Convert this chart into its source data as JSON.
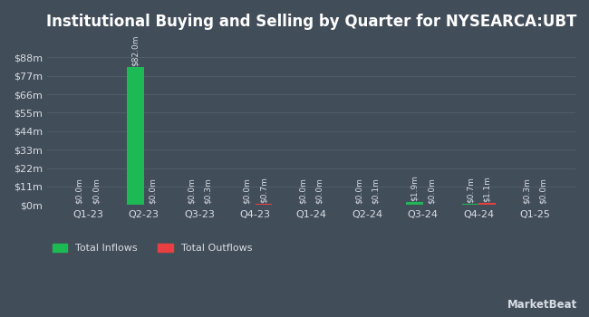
{
  "title": "Institutional Buying and Selling by Quarter for NYSEARCA:UBT",
  "quarters": [
    "Q1-23",
    "Q2-23",
    "Q3-23",
    "Q4-23",
    "Q1-24",
    "Q2-24",
    "Q3-24",
    "Q4-24",
    "Q1-25"
  ],
  "inflows": [
    0.0,
    82.0,
    0.0,
    0.0,
    0.0,
    0.0,
    1.9,
    0.7,
    0.3
  ],
  "outflows": [
    0.0,
    0.0,
    0.3,
    0.7,
    0.0,
    0.1,
    0.0,
    1.1,
    0.0
  ],
  "inflow_color": "#1db954",
  "outflow_color": "#e84040",
  "bg_color": "#424d5a",
  "grid_color": "#4e5c6a",
  "text_color": "#d8dde3",
  "title_color": "#ffffff",
  "title_fontsize": 12,
  "label_fontsize": 6.5,
  "tick_fontsize": 8,
  "legend_fontsize": 8,
  "ylim": [
    0,
    99
  ],
  "yticks": [
    0,
    11,
    22,
    33,
    44,
    55,
    66,
    77,
    88
  ],
  "ytick_labels": [
    "$0m",
    "$11m",
    "$22m",
    "$33m",
    "$44m",
    "$55m",
    "$66m",
    "$77m",
    "$88m"
  ],
  "bar_width": 0.3,
  "watermark": "MarketBeat"
}
